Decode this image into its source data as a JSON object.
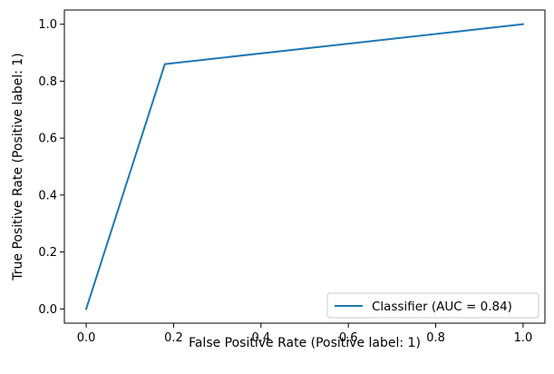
{
  "chart_data": {
    "type": "line",
    "title": "",
    "xlabel": "False Positive Rate (Positive label: 1)",
    "ylabel": "True Positive Rate (Positive label: 1)",
    "xlim": [
      -0.05,
      1.05
    ],
    "ylim": [
      -0.05,
      1.05
    ],
    "xticks": [
      0.0,
      0.2,
      0.4,
      0.6,
      0.8,
      1.0
    ],
    "yticks": [
      0.0,
      0.2,
      0.4,
      0.6,
      0.8,
      1.0
    ],
    "xtick_labels": [
      "0.0",
      "0.2",
      "0.4",
      "0.6",
      "0.8",
      "1.0"
    ],
    "ytick_labels": [
      "0.0",
      "0.2",
      "0.4",
      "0.6",
      "0.8",
      "1.0"
    ],
    "grid": false,
    "legend_position": "lower-right",
    "series": [
      {
        "name": "Classifier (AUC = 0.84)",
        "color": "#1f77b4",
        "x": [
          0.0,
          0.18,
          1.0
        ],
        "y": [
          0.0,
          0.86,
          1.0
        ]
      }
    ]
  }
}
